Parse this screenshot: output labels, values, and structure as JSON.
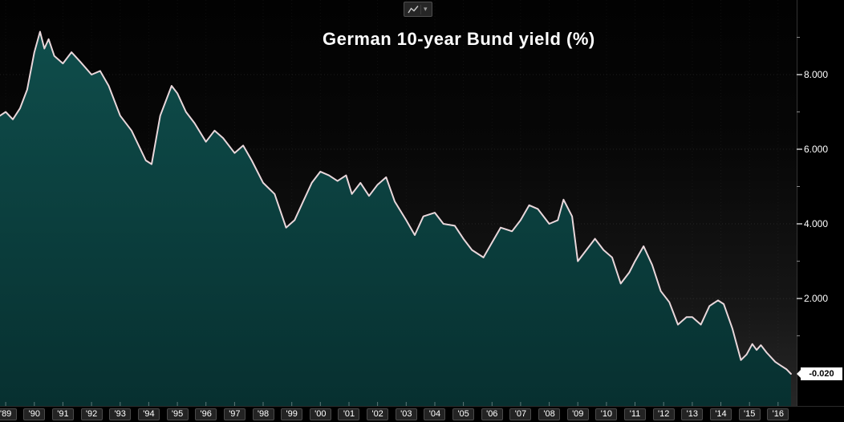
{
  "toolbar": {
    "chart_type_icon": "line-chart-icon",
    "dropdown_icon": "chevron-down-icon",
    "caret_glyph": "▾"
  },
  "chart_data": {
    "type": "area",
    "title": "German 10-year Bund yield (%)",
    "series": [
      {
        "name": "German 10-year Bund yield",
        "x": [
          1988.8,
          1989.0,
          1989.25,
          1989.5,
          1989.75,
          1990.0,
          1990.2,
          1990.35,
          1990.5,
          1990.7,
          1991.0,
          1991.3,
          1991.6,
          1992.0,
          1992.3,
          1992.6,
          1993.0,
          1993.4,
          1993.9,
          1994.1,
          1994.4,
          1994.8,
          1995.0,
          1995.3,
          1995.6,
          1996.0,
          1996.3,
          1996.6,
          1997.0,
          1997.3,
          1997.6,
          1998.0,
          1998.4,
          1998.8,
          1999.1,
          1999.4,
          1999.7,
          2000.0,
          2000.3,
          2000.6,
          2000.9,
          2001.1,
          2001.4,
          2001.7,
          2002.0,
          2002.3,
          2002.6,
          2003.0,
          2003.3,
          2003.6,
          2004.0,
          2004.3,
          2004.7,
          2005.0,
          2005.3,
          2005.7,
          2006.0,
          2006.3,
          2006.7,
          2007.0,
          2007.3,
          2007.6,
          2008.0,
          2008.3,
          2008.5,
          2008.8,
          2009.0,
          2009.3,
          2009.6,
          2009.9,
          2010.2,
          2010.5,
          2010.8,
          2011.0,
          2011.3,
          2011.6,
          2011.9,
          2012.2,
          2012.5,
          2012.8,
          2013.0,
          2013.3,
          2013.6,
          2013.9,
          2014.1,
          2014.4,
          2014.7,
          2014.9,
          2015.1,
          2015.25,
          2015.4,
          2015.6,
          2015.9,
          2016.1,
          2016.3,
          2016.45
        ],
        "values": [
          6.9,
          7.0,
          6.8,
          7.1,
          7.6,
          8.6,
          9.15,
          8.7,
          8.95,
          8.5,
          8.3,
          8.6,
          8.35,
          8.0,
          8.1,
          7.7,
          6.9,
          6.5,
          5.7,
          5.6,
          6.9,
          7.7,
          7.5,
          7.0,
          6.7,
          6.2,
          6.5,
          6.3,
          5.9,
          6.1,
          5.7,
          5.1,
          4.8,
          3.9,
          4.1,
          4.6,
          5.1,
          5.4,
          5.3,
          5.15,
          5.3,
          4.8,
          5.1,
          4.75,
          5.05,
          5.25,
          4.6,
          4.1,
          3.7,
          4.2,
          4.3,
          4.0,
          3.95,
          3.6,
          3.3,
          3.1,
          3.5,
          3.9,
          3.8,
          4.1,
          4.5,
          4.4,
          4.0,
          4.1,
          4.65,
          4.2,
          3.0,
          3.3,
          3.6,
          3.3,
          3.1,
          2.4,
          2.7,
          3.0,
          3.4,
          2.9,
          2.2,
          1.9,
          1.3,
          1.5,
          1.5,
          1.3,
          1.8,
          1.95,
          1.85,
          1.2,
          0.35,
          0.5,
          0.78,
          0.62,
          0.75,
          0.55,
          0.3,
          0.2,
          0.1,
          -0.02
        ]
      }
    ],
    "x_tick_years": [
      1989,
      1990,
      1991,
      1992,
      1993,
      1994,
      1995,
      1996,
      1997,
      1998,
      1999,
      2000,
      2001,
      2002,
      2003,
      2004,
      2005,
      2006,
      2007,
      2008,
      2009,
      2010,
      2011,
      2012,
      2013,
      2014,
      2015,
      2016
    ],
    "x_tick_labels": [
      "'89",
      "'90",
      "'91",
      "'92",
      "'93",
      "'94",
      "'95",
      "'96",
      "'97",
      "'98",
      "'99",
      "'00",
      "'01",
      "'02",
      "'03",
      "'04",
      "'05",
      "'06",
      "'07",
      "'08",
      "'09",
      "'10",
      "'11",
      "'12",
      "'13",
      "'14",
      "'15",
      "'16"
    ],
    "y_ticks": [
      2,
      4,
      6,
      8
    ],
    "y_tick_labels": [
      "2.000",
      "4.000",
      "6.000",
      "8.000"
    ],
    "y_minor_ticks": [
      1,
      3,
      5,
      7,
      9
    ],
    "xlim": [
      1988.8,
      2016.65
    ],
    "ylim": [
      -0.88,
      10.0
    ],
    "grid": "faint-dotted",
    "legend": "none",
    "last_value": -0.02,
    "last_value_label": "-0.020",
    "colors": {
      "area_fill_top": "#0f4d4b",
      "area_fill_bottom": "#073030",
      "line": "#e9d7db",
      "axis_text": "#ffffff",
      "last_label_bg": "#ffffff",
      "last_label_text": "#000000",
      "tick": "#d8d8d8",
      "grid": "rgba(255,255,255,0.10)"
    }
  }
}
